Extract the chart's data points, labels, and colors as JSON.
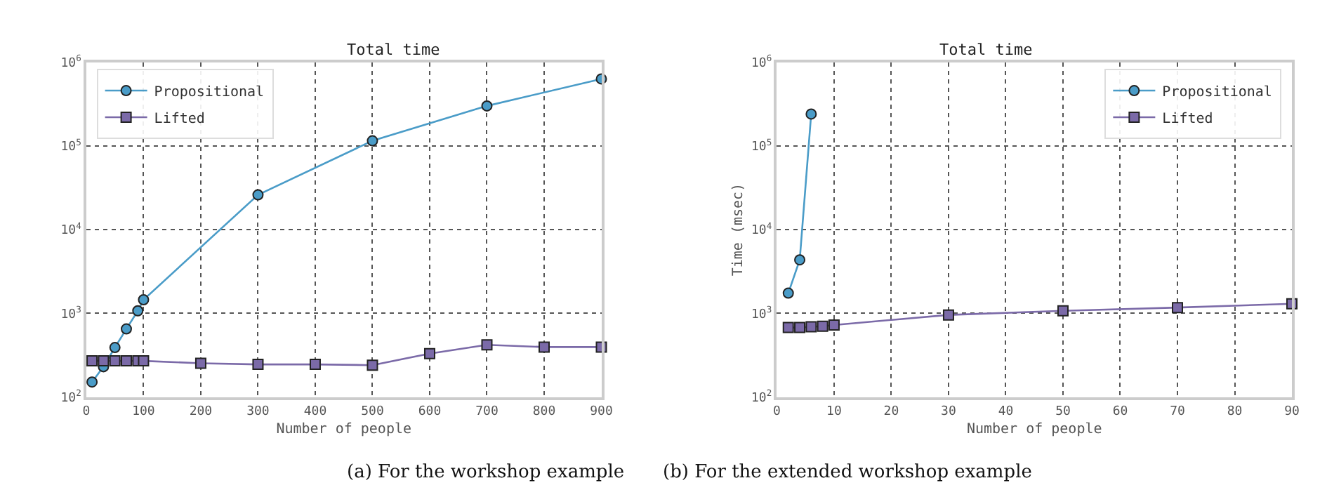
{
  "chart_data": [
    {
      "type": "line",
      "title": "Total time",
      "xlabel": "Number of people",
      "annotations": [
        "(a) For the workshop example"
      ],
      "xlim": [
        0,
        900
      ],
      "xticks": [
        0,
        100,
        200,
        300,
        400,
        500,
        600,
        700,
        800,
        900
      ],
      "ylim": [
        100,
        1000000
      ],
      "yticks": [
        {
          "value": 100,
          "label": "10$^{2}$"
        },
        {
          "value": 1000,
          "label": "10$^{3}$"
        },
        {
          "value": 10000,
          "label": "10$^{4}$"
        },
        {
          "value": 100000,
          "label": "10$^{5}$"
        },
        {
          "value": 1000000,
          "label": "10$^{6}$"
        }
      ],
      "log": true,
      "grid": true,
      "legend": "top left",
      "series": [
        {
          "name": "Propositional",
          "color": "#4a9cc8",
          "marker": "circle",
          "x": [
            10,
            30,
            50,
            70,
            90,
            100,
            300,
            500,
            700,
            900
          ],
          "values": [
            151,
            230,
            390,
            650,
            1070,
            1450,
            26000,
            115000,
            300000,
            630000
          ]
        },
        {
          "name": "Lifted",
          "color": "#7b6aa8",
          "marker": "square",
          "x": [
            10,
            30,
            50,
            70,
            90,
            100,
            200,
            300,
            400,
            500,
            600,
            700,
            800,
            900
          ],
          "values": [
            270,
            270,
            270,
            270,
            270,
            270,
            253,
            245,
            245,
            240,
            330,
            420,
            395,
            395
          ]
        }
      ]
    },
    {
      "type": "line",
      "title": "Total time",
      "xlabel": "Number of people",
      "ylabel": "Time (msec)",
      "annotations": [
        "(b) For the extended workshop example"
      ],
      "xlim": [
        0,
        90
      ],
      "xticks": [
        0,
        10,
        20,
        30,
        40,
        50,
        60,
        70,
        80,
        90
      ],
      "ylim": [
        100,
        1000000
      ],
      "yticks": [
        {
          "value": 100,
          "label": "10$^{2}$"
        },
        {
          "value": 1000,
          "label": "10$^{3}$"
        },
        {
          "value": 10000,
          "label": "10$^{4}$"
        },
        {
          "value": 100000,
          "label": "10$^{5}$"
        },
        {
          "value": 1000000,
          "label": "10$^{6}$"
        }
      ],
      "log": true,
      "grid": true,
      "legend": "top right",
      "series": [
        {
          "name": "Propositional",
          "color": "#4a9cc8",
          "marker": "circle",
          "x": [
            2,
            4,
            6
          ],
          "values": [
            1740,
            4350,
            240000
          ]
        },
        {
          "name": "Lifted",
          "color": "#7b6aa8",
          "marker": "square",
          "x": [
            2,
            4,
            6,
            8,
            10,
            30,
            50,
            70,
            90
          ],
          "values": [
            675,
            675,
            690,
            700,
            725,
            955,
            1070,
            1170,
            1300
          ]
        }
      ]
    }
  ]
}
